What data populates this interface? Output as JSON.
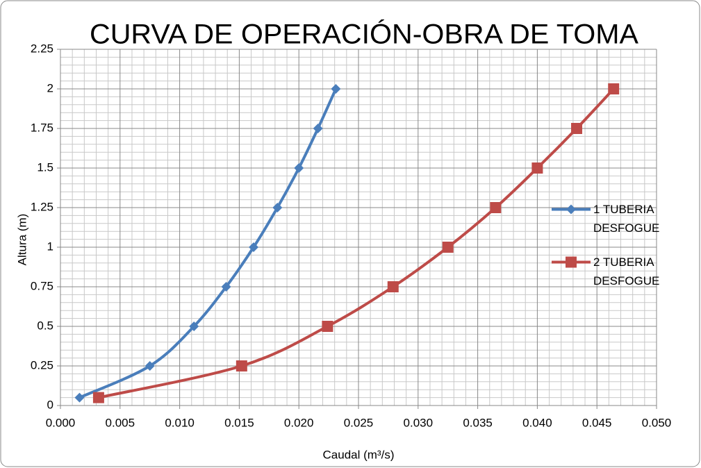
{
  "chart_data": {
    "type": "line",
    "title": "CURVA DE OPERACIÓN-OBRA DE TOMA",
    "xlabel": "Caudal (m³/s)",
    "ylabel": "Altura (m)",
    "xlim": [
      0,
      0.05
    ],
    "ylim": [
      0,
      2.25
    ],
    "xticks": [
      {
        "value": 0,
        "label": "0.000"
      },
      {
        "value": 0.005,
        "label": "0.005"
      },
      {
        "value": 0.01,
        "label": "0.010"
      },
      {
        "value": 0.015,
        "label": "0.015"
      },
      {
        "value": 0.02,
        "label": "0.020"
      },
      {
        "value": 0.025,
        "label": "0.025"
      },
      {
        "value": 0.03,
        "label": "0.030"
      },
      {
        "value": 0.035,
        "label": "0.035"
      },
      {
        "value": 0.04,
        "label": "0.040"
      },
      {
        "value": 0.045,
        "label": "0.045"
      },
      {
        "value": 0.05,
        "label": "0.050"
      }
    ],
    "yticks": [
      0,
      0.25,
      0.5,
      0.75,
      1,
      1.25,
      1.5,
      1.75,
      2,
      2.25
    ],
    "grid": true,
    "minor_grid": true,
    "legend": "right",
    "series": [
      {
        "name": "1  TUBERIA DESFOGUE",
        "color": "#4a7ebb",
        "marker": "diamond",
        "x": [
          0.0016,
          0.0075,
          0.0112,
          0.0139,
          0.0162,
          0.0182,
          0.02,
          0.0216,
          0.0231
        ],
        "values": [
          0.05,
          0.25,
          0.5,
          0.75,
          1,
          1.25,
          1.5,
          1.75,
          2
        ]
      },
      {
        "name": "2  TUBERIA DESFOGUE",
        "color": "#be4b48",
        "marker": "square",
        "x": [
          0.0032,
          0.0152,
          0.0224,
          0.0279,
          0.0325,
          0.0365,
          0.04,
          0.0433,
          0.0464
        ],
        "values": [
          0.05,
          0.25,
          0.5,
          0.75,
          1,
          1.25,
          1.5,
          1.75,
          2
        ]
      }
    ]
  }
}
